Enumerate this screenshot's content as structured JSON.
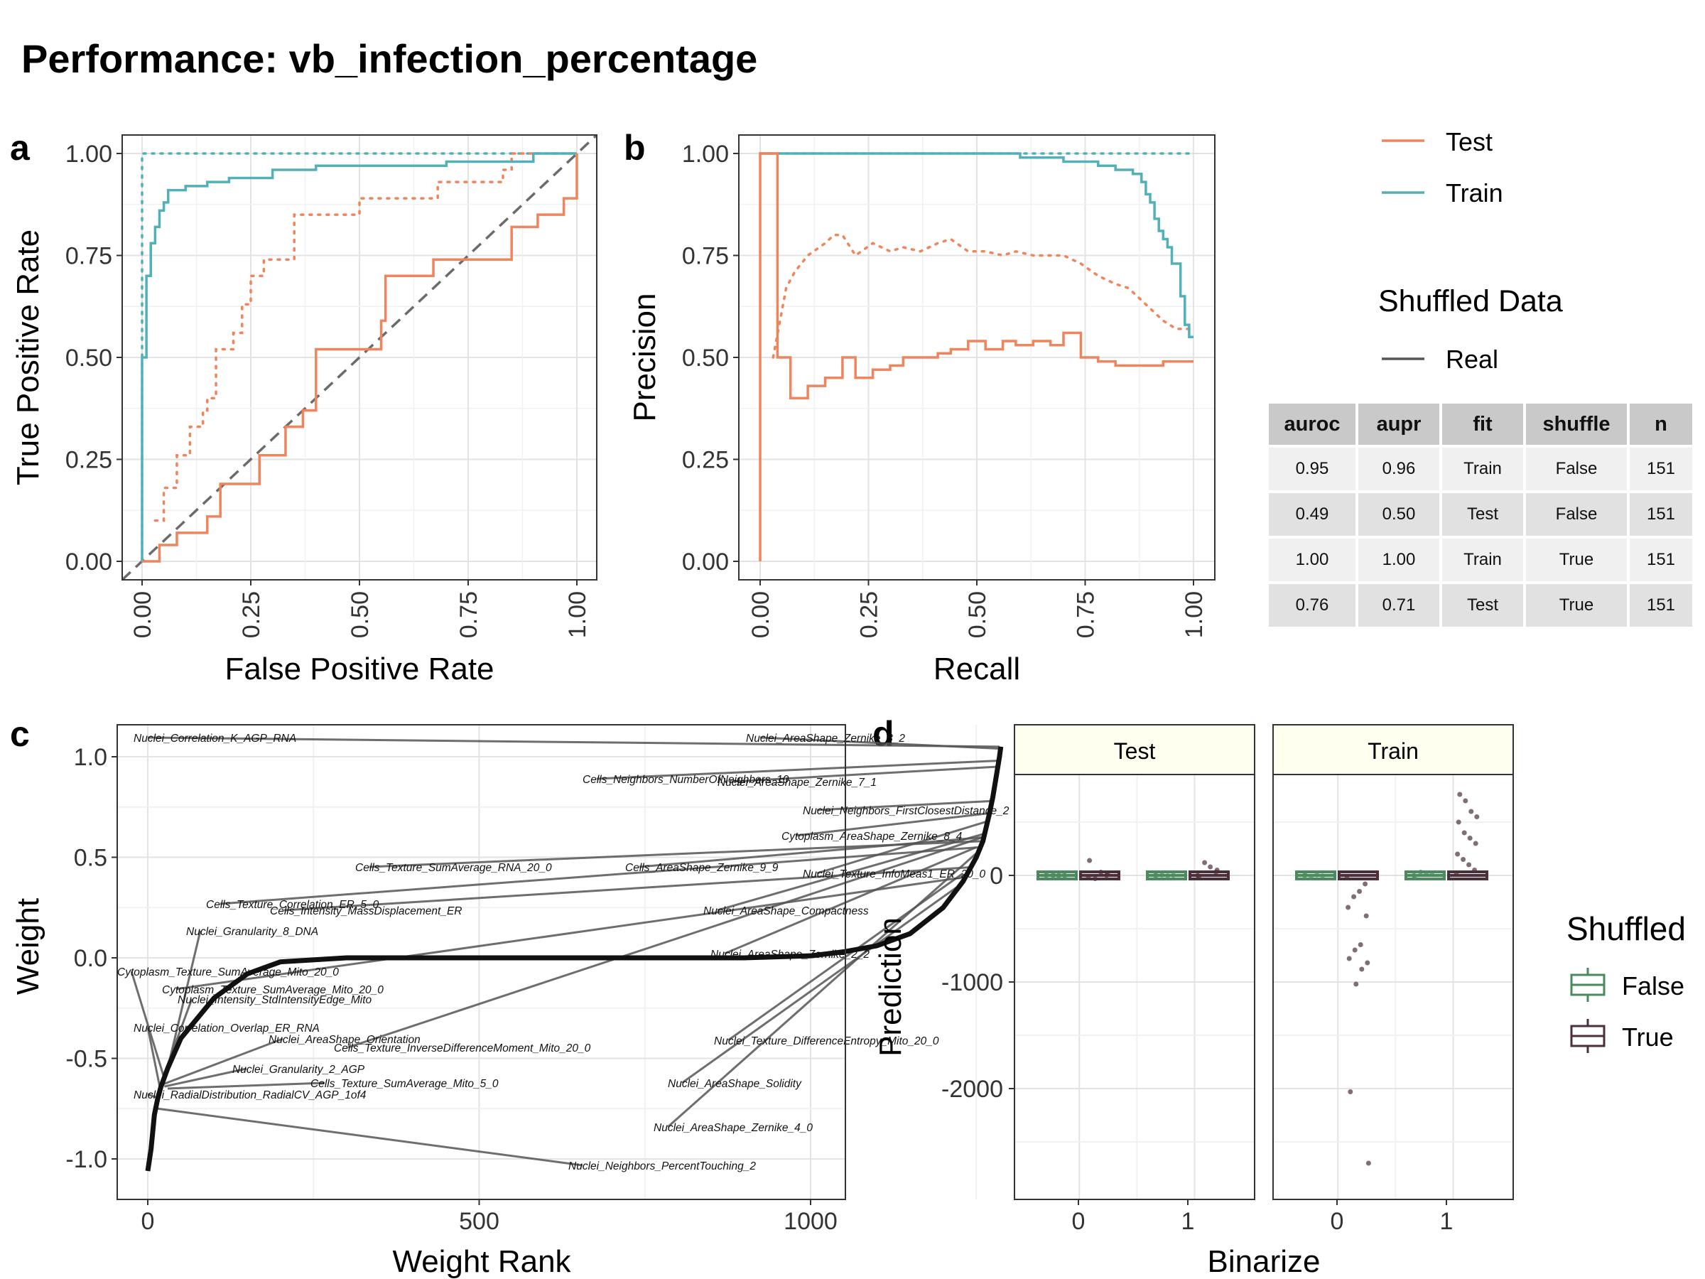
{
  "title": "Performance: vb_infection_percentage",
  "colors": {
    "test": "#f0845c",
    "train": "#52b0b8",
    "false": "#4b8a5c",
    "true": "#4d2e3b"
  },
  "panel_letters": [
    "a",
    "b",
    "c",
    "d"
  ],
  "legend_top": {
    "items": [
      "Test",
      "Train"
    ],
    "shuffled_title": "Shuffled Data",
    "shuffled_item": "Real"
  },
  "table": {
    "headers": [
      "auroc",
      "aupr",
      "fit",
      "shuffle",
      "n"
    ],
    "rows": [
      [
        "0.95",
        "0.96",
        "Train",
        "False",
        "151"
      ],
      [
        "0.49",
        "0.50",
        "Test",
        "False",
        "151"
      ],
      [
        "1.00",
        "1.00",
        "Train",
        "True",
        "151"
      ],
      [
        "0.76",
        "0.71",
        "Test",
        "True",
        "151"
      ]
    ]
  },
  "legend_d": {
    "title": "Shuffled",
    "items": [
      "False",
      "True"
    ]
  },
  "chart_data": [
    {
      "panel": "a",
      "type": "line",
      "xlabel": "False Positive Rate",
      "ylabel": "True Positive Rate",
      "xlim": [
        0,
        1
      ],
      "ylim": [
        0,
        1
      ],
      "xticks": [
        "0.00",
        "0.25",
        "0.50",
        "0.75",
        "1.00"
      ],
      "yticks": [
        "0.00",
        "0.25",
        "0.50",
        "0.75",
        "1.00"
      ],
      "series": [
        {
          "name": "Train",
          "x": [
            0,
            0,
            0.01,
            0.01,
            0.02,
            0.02,
            0.03,
            0.04,
            0.05,
            0.05,
            0.06,
            0.06,
            0.08,
            0.1,
            0.15,
            0.2,
            0.3,
            0.4,
            0.5,
            0.6,
            0.7,
            0.8,
            0.9,
            1
          ],
          "y": [
            0,
            0.5,
            0.55,
            0.7,
            0.75,
            0.78,
            0.82,
            0.86,
            0.86,
            0.88,
            0.89,
            0.91,
            0.91,
            0.92,
            0.93,
            0.94,
            0.96,
            0.97,
            0.97,
            0.97,
            0.98,
            0.98,
            1.0,
            1.0
          ]
        },
        {
          "name": "Test",
          "x": [
            0,
            0.04,
            0.04,
            0.08,
            0.08,
            0.15,
            0.15,
            0.18,
            0.18,
            0.27,
            0.27,
            0.33,
            0.33,
            0.37,
            0.37,
            0.4,
            0.4,
            0.52,
            0.52,
            0.55,
            0.55,
            0.56,
            0.56,
            0.67,
            0.67,
            0.75,
            0.75,
            0.85,
            0.85,
            0.91,
            0.91,
            0.97,
            0.97,
            1.0,
            1.0
          ],
          "y": [
            0,
            0,
            0.04,
            0.04,
            0.07,
            0.07,
            0.11,
            0.11,
            0.19,
            0.19,
            0.26,
            0.26,
            0.33,
            0.33,
            0.37,
            0.37,
            0.52,
            0.52,
            0.52,
            0.52,
            0.59,
            0.59,
            0.7,
            0.7,
            0.74,
            0.74,
            0.74,
            0.74,
            0.82,
            0.82,
            0.85,
            0.85,
            0.89,
            0.89,
            1.0
          ]
        }
      ],
      "shuffled_series": [
        {
          "name": "Train",
          "x": [
            0,
            0,
            1
          ],
          "y": [
            0,
            1,
            1
          ]
        },
        {
          "name": "Test",
          "x": [
            0.03,
            0.05,
            0.08,
            0.11,
            0.14,
            0.15,
            0.17,
            0.21,
            0.23,
            0.25,
            0.28,
            0.3,
            0.35,
            0.38,
            0.5,
            0.56,
            0.66,
            0.68,
            0.83,
            0.85,
            1.0
          ],
          "y": [
            0.1,
            0.18,
            0.26,
            0.33,
            0.37,
            0.4,
            0.52,
            0.56,
            0.63,
            0.7,
            0.74,
            0.74,
            0.85,
            0.85,
            0.89,
            0.89,
            0.89,
            0.93,
            0.96,
            1.0,
            1.0
          ]
        }
      ],
      "reference_line": {
        "x": [
          0,
          1
        ],
        "y": [
          0,
          1
        ]
      }
    },
    {
      "panel": "b",
      "type": "line",
      "xlabel": "Recall",
      "ylabel": "Precision",
      "xlim": [
        0,
        1
      ],
      "ylim": [
        0,
        1
      ],
      "xticks": [
        "0.00",
        "0.25",
        "0.50",
        "0.75",
        "1.00"
      ],
      "yticks": [
        "0.00",
        "0.25",
        "0.50",
        "0.75",
        "1.00"
      ],
      "series": [
        {
          "name": "Train",
          "x": [
            0,
            0.51,
            0.6,
            0.7,
            0.75,
            0.78,
            0.82,
            0.86,
            0.88,
            0.89,
            0.9,
            0.91,
            0.92,
            0.93,
            0.94,
            0.95,
            0.97,
            0.98,
            0.99,
            1.0
          ],
          "y": [
            1.0,
            1.0,
            0.99,
            0.98,
            0.98,
            0.97,
            0.96,
            0.95,
            0.93,
            0.9,
            0.88,
            0.84,
            0.81,
            0.79,
            0.77,
            0.73,
            0.65,
            0.58,
            0.55,
            0.55
          ]
        },
        {
          "name": "Test",
          "x": [
            0,
            0,
            0.04,
            0.04,
            0.07,
            0.07,
            0.11,
            0.15,
            0.19,
            0.22,
            0.26,
            0.3,
            0.33,
            0.37,
            0.41,
            0.44,
            0.48,
            0.52,
            0.56,
            0.59,
            0.63,
            0.67,
            0.7,
            0.74,
            0.78,
            0.82,
            0.85,
            0.89,
            0.93,
            0.96,
            1.0
          ],
          "y": [
            0,
            1.0,
            1.0,
            0.5,
            0.5,
            0.4,
            0.43,
            0.45,
            0.5,
            0.45,
            0.47,
            0.48,
            0.5,
            0.5,
            0.51,
            0.52,
            0.54,
            0.52,
            0.54,
            0.53,
            0.54,
            0.53,
            0.56,
            0.5,
            0.49,
            0.48,
            0.48,
            0.48,
            0.49,
            0.49,
            0.49
          ]
        }
      ],
      "shuffled_series": [
        {
          "name": "Train",
          "x": [
            0,
            1
          ],
          "y": [
            1.0,
            1.0
          ]
        },
        {
          "name": "Test",
          "x": [
            0.03,
            0.06,
            0.08,
            0.11,
            0.15,
            0.17,
            0.19,
            0.22,
            0.26,
            0.3,
            0.33,
            0.37,
            0.41,
            0.44,
            0.48,
            0.52,
            0.56,
            0.59,
            0.63,
            0.67,
            0.7,
            0.74,
            0.78,
            0.82,
            0.85,
            0.88,
            0.9,
            0.93,
            0.96,
            1.0
          ],
          "y": [
            0.5,
            0.67,
            0.71,
            0.75,
            0.78,
            0.8,
            0.8,
            0.75,
            0.78,
            0.76,
            0.77,
            0.76,
            0.78,
            0.79,
            0.76,
            0.76,
            0.75,
            0.76,
            0.75,
            0.75,
            0.75,
            0.73,
            0.7,
            0.68,
            0.67,
            0.64,
            0.62,
            0.59,
            0.57,
            0.57
          ]
        }
      ]
    },
    {
      "panel": "c",
      "type": "scatter",
      "xlabel": "Weight Rank",
      "ylabel": "Weight",
      "xlim": [
        -60,
        1350
      ],
      "ylim": [
        -1.13,
        1.17
      ],
      "xticks": [
        "0",
        "500",
        "1000"
      ],
      "yticks": [
        "-1.0",
        "-0.5",
        "0.0",
        "0.5",
        "1.0"
      ],
      "curve": {
        "rank": [
          0,
          5,
          10,
          15,
          20,
          30,
          50,
          100,
          150,
          200,
          300,
          400,
          500,
          600,
          700,
          800,
          900,
          1000,
          1050,
          1100,
          1150,
          1200,
          1230,
          1250,
          1260,
          1265,
          1270,
          1275,
          1280,
          1285,
          1287
        ],
        "weight": [
          -1.06,
          -0.95,
          -0.78,
          -0.7,
          -0.64,
          -0.55,
          -0.4,
          -0.2,
          -0.08,
          -0.02,
          0.0,
          0.0,
          0.0,
          0.0,
          0.0,
          0.0,
          0.0,
          0.01,
          0.03,
          0.06,
          0.12,
          0.25,
          0.38,
          0.5,
          0.58,
          0.65,
          0.72,
          0.8,
          0.9,
          1.0,
          1.05
        ]
      },
      "labels": [
        "Nuclei_Correlation_K_AGP_RNA",
        "Cells_Neighbors_NumberOfNeighbors_10",
        "Nuclei_Neighbors_FirstClosestDistance_2",
        "Cytoplasm_AreaShape_Zernike_8_4",
        "Nuclei_Texture_InfoMeas1_ER_20_0",
        "Cells_Texture_Correlation_ER_5_0",
        "Nuclei_Granularity_8_DNA",
        "Cytoplasm_Texture_SumAverage_Mito_20_0",
        "Nuclei_Intensity_StdIntensityEdge_Mito",
        "Nuclei_Correlation_Overlap_ER_RNA",
        "Nuclei_AreaShape_Orientation",
        "Cells_Texture_InverseDifferenceMoment_Mito_20_0",
        "Nuclei_Granularity_2_AGP",
        "Cells_Texture_SumAverage_Mito_5_0",
        "Nuclei_RadialDistribution_RadialCV_AGP_1of4",
        "Nuclei_AreaShape_Zernike_4_0",
        "Nuclei_Neighbors_PercentTouching_2",
        "Nuclei_AreaShape_Zernike_8_2",
        "Cytoplasm_Texture_SumAverage_Mito_20_0",
        "Nuclei_AreaShape_Compactness",
        "Nuclei_AreaShape_Zernike_2_2",
        "Cells_Intensity_MassDisplacement_ER",
        "Nuclei_Texture_DifferenceEntropy_Mito_20_0",
        "Nuclei_AreaShape_Solidity",
        "Cells_AreaShape_Zernike_9_9",
        "Cells_Texture_SumAverage_RNA_20_0",
        "Nuclei_AreaShape_Zernike_7_1"
      ]
    },
    {
      "panel": "d",
      "type": "scatter",
      "xlabel": "Binarize",
      "ylabel": "Prediction",
      "facets": [
        "Test",
        "Train"
      ],
      "xticks": [
        "0",
        "1"
      ],
      "yticks": [
        "-2000",
        "-1000",
        "0"
      ],
      "ylim": [
        -2850,
        1150
      ],
      "groups": [
        {
          "facet": "Test",
          "binarize": 0,
          "shuffled": "False",
          "values": [
            0,
            2,
            -1,
            1,
            3,
            -2,
            0,
            1
          ]
        },
        {
          "facet": "Test",
          "binarize": 0,
          "shuffled": "True",
          "values": [
            -20,
            0,
            30,
            -30,
            140,
            10
          ]
        },
        {
          "facet": "Test",
          "binarize": 1,
          "shuffled": "False",
          "values": [
            0,
            2,
            -3,
            4,
            1
          ]
        },
        {
          "facet": "Test",
          "binarize": 1,
          "shuffled": "True",
          "values": [
            0,
            30,
            80,
            120,
            -20,
            50
          ]
        },
        {
          "facet": "Train",
          "binarize": 0,
          "shuffled": "False",
          "values": [
            0,
            -5,
            5,
            -8,
            3
          ]
        },
        {
          "facet": "Train",
          "binarize": 0,
          "shuffled": "True",
          "values": [
            -10,
            -80,
            -150,
            -200,
            -300,
            -380,
            -650,
            -700,
            -780,
            -820,
            -880,
            -1020,
            -2030,
            -2700
          ]
        },
        {
          "facet": "Train",
          "binarize": 1,
          "shuffled": "False",
          "values": [
            0,
            10,
            20,
            30,
            -5
          ]
        },
        {
          "facet": "Train",
          "binarize": 1,
          "shuffled": "True",
          "values": [
            10,
            50,
            100,
            150,
            200,
            300,
            350,
            400,
            500,
            550,
            600,
            700,
            760
          ]
        }
      ]
    }
  ]
}
